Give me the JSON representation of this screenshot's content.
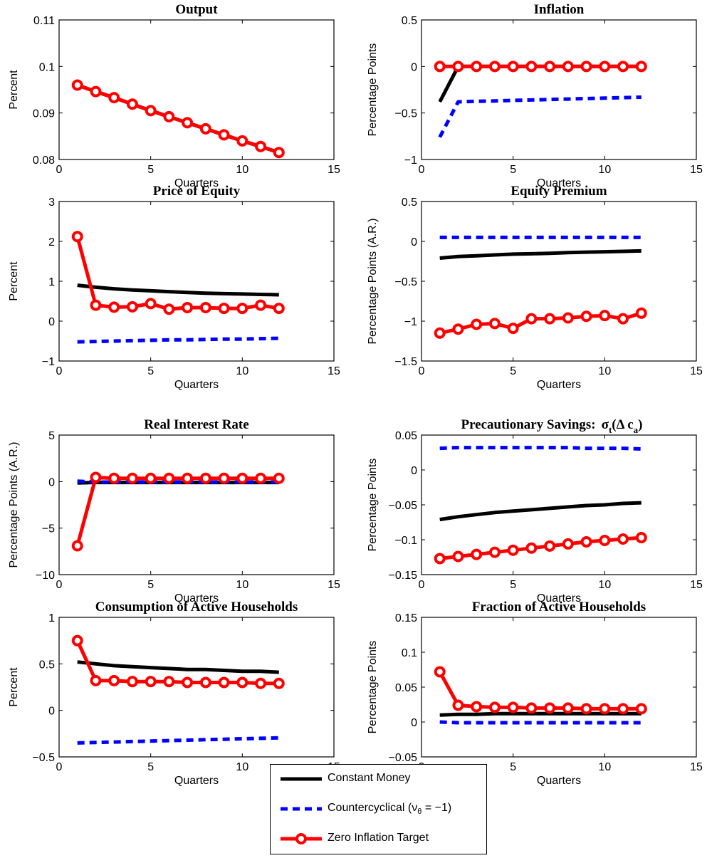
{
  "colors": {
    "constant": "#000000",
    "countercyclical": "#0000ff",
    "zero_inflation": "#ff0000"
  },
  "legend": {
    "constant": "Constant Money",
    "countercyclical_prefix": "Countercyclical (ν",
    "countercyclical_sub": "θ",
    "countercyclical_suffix": " = −1)",
    "zero_inflation": "Zero Inflation Target"
  },
  "chart_data": [
    {
      "type": "line",
      "title": "Output",
      "xlabel": "Quarters",
      "ylabel": "Percent",
      "xlim": [
        0,
        15
      ],
      "ylim": [
        0.08,
        0.11
      ],
      "xticks": [
        "0",
        "5",
        "10",
        "15"
      ],
      "yticks": [
        "0.08",
        "0.09",
        "0.1",
        "0.11"
      ],
      "x": [
        1,
        2,
        3,
        4,
        5,
        6,
        7,
        8,
        9,
        10,
        11,
        12
      ],
      "series": [
        {
          "name": "Constant Money",
          "values": [
            0.096,
            0.0946,
            0.0933,
            0.0919,
            0.0905,
            0.0892,
            0.0879,
            0.0866,
            0.0853,
            0.084,
            0.0828,
            0.0815
          ]
        },
        {
          "name": "Countercyclical (νθ = −1)",
          "values": [
            0.096,
            0.0946,
            0.0933,
            0.0919,
            0.0905,
            0.0892,
            0.0879,
            0.0866,
            0.0853,
            0.084,
            0.0828,
            0.0815
          ]
        },
        {
          "name": "Zero Inflation Target",
          "values": [
            0.096,
            0.0946,
            0.0933,
            0.0919,
            0.0905,
            0.0892,
            0.0879,
            0.0866,
            0.0853,
            0.084,
            0.0828,
            0.0815
          ]
        }
      ]
    },
    {
      "type": "line",
      "title": "Inflation",
      "xlabel": "Quarters",
      "ylabel": "Percentage Points",
      "xlim": [
        0,
        15
      ],
      "ylim": [
        -1,
        0.5
      ],
      "xticks": [
        "0",
        "5",
        "10",
        "15"
      ],
      "yticks": [
        "−1",
        "−0.5",
        "0",
        "0.5"
      ],
      "x": [
        1,
        2,
        3,
        4,
        5,
        6,
        7,
        8,
        9,
        10,
        11,
        12
      ],
      "series": [
        {
          "name": "Constant Money",
          "values": [
            -0.38,
            0,
            0,
            0,
            0,
            0,
            0,
            0,
            0,
            0,
            0,
            0
          ]
        },
        {
          "name": "Countercyclical (νθ = −1)",
          "values": [
            -0.76,
            -0.38,
            -0.375,
            -0.37,
            -0.365,
            -0.36,
            -0.355,
            -0.35,
            -0.345,
            -0.34,
            -0.335,
            -0.33
          ]
        },
        {
          "name": "Zero Inflation Target",
          "values": [
            0,
            0,
            0,
            0,
            0,
            0,
            0,
            0,
            0,
            0,
            0,
            0
          ]
        }
      ]
    },
    {
      "type": "line",
      "title": "Price of Equity",
      "xlabel": "Quarters",
      "ylabel": "Percent",
      "xlim": [
        0,
        15
      ],
      "ylim": [
        -1,
        3
      ],
      "xticks": [
        "0",
        "5",
        "10",
        "15"
      ],
      "yticks": [
        "−1",
        "0",
        "1",
        "2",
        "3"
      ],
      "x": [
        1,
        2,
        3,
        4,
        5,
        6,
        7,
        8,
        9,
        10,
        11,
        12
      ],
      "series": [
        {
          "name": "Constant Money",
          "values": [
            0.9,
            0.85,
            0.81,
            0.78,
            0.76,
            0.74,
            0.72,
            0.7,
            0.69,
            0.68,
            0.67,
            0.66
          ]
        },
        {
          "name": "Countercyclical (νθ = −1)",
          "values": [
            -0.52,
            -0.51,
            -0.5,
            -0.49,
            -0.48,
            -0.47,
            -0.47,
            -0.46,
            -0.45,
            -0.45,
            -0.44,
            -0.43
          ]
        },
        {
          "name": "Zero Inflation Target",
          "values": [
            2.12,
            0.4,
            0.35,
            0.36,
            0.44,
            0.3,
            0.34,
            0.34,
            0.32,
            0.32,
            0.4,
            0.32
          ]
        }
      ]
    },
    {
      "type": "line",
      "title": "Equity Premium",
      "xlabel": "Quarters",
      "ylabel": "Percentage Points (A.R.)",
      "xlim": [
        0,
        15
      ],
      "ylim": [
        -1.5,
        0.5
      ],
      "xticks": [
        "0",
        "5",
        "10",
        "15"
      ],
      "yticks": [
        "−1.5",
        "−1",
        "−0.5",
        "0",
        "0.5"
      ],
      "x": [
        1,
        2,
        3,
        4,
        5,
        6,
        7,
        8,
        9,
        10,
        11,
        12
      ],
      "series": [
        {
          "name": "Constant Money",
          "values": [
            -0.21,
            -0.19,
            -0.18,
            -0.17,
            -0.16,
            -0.155,
            -0.15,
            -0.14,
            -0.135,
            -0.13,
            -0.125,
            -0.12
          ]
        },
        {
          "name": "Countercyclical (νθ = −1)",
          "values": [
            0.05,
            0.05,
            0.05,
            0.05,
            0.05,
            0.05,
            0.05,
            0.05,
            0.05,
            0.05,
            0.05,
            0.05
          ]
        },
        {
          "name": "Zero Inflation Target",
          "values": [
            -1.15,
            -1.1,
            -1.04,
            -1.03,
            -1.09,
            -0.97,
            -0.97,
            -0.96,
            -0.94,
            -0.93,
            -0.97,
            -0.9
          ]
        }
      ]
    },
    {
      "type": "line",
      "title": "Real Interest Rate",
      "xlabel": "Quarters",
      "ylabel": "Percentage Points (A.R.)",
      "xlim": [
        0,
        15
      ],
      "ylim": [
        -10,
        5
      ],
      "xticks": [
        "0",
        "5",
        "10",
        "15"
      ],
      "yticks": [
        "−10",
        "−5",
        "0",
        "5"
      ],
      "x": [
        1,
        2,
        3,
        4,
        5,
        6,
        7,
        8,
        9,
        10,
        11,
        12
      ],
      "series": [
        {
          "name": "Constant Money",
          "values": [
            -0.15,
            -0.1,
            -0.1,
            -0.1,
            -0.1,
            -0.1,
            -0.1,
            -0.1,
            -0.1,
            -0.1,
            -0.1,
            -0.1
          ]
        },
        {
          "name": "Countercyclical (νθ = −1)",
          "values": [
            0.05,
            -0.05,
            -0.05,
            -0.05,
            -0.05,
            -0.05,
            -0.05,
            -0.05,
            -0.05,
            -0.05,
            -0.05,
            -0.05
          ]
        },
        {
          "name": "Zero Inflation Target",
          "values": [
            -6.9,
            0.45,
            0.35,
            0.35,
            0.35,
            0.35,
            0.35,
            0.35,
            0.35,
            0.35,
            0.35,
            0.35
          ]
        }
      ]
    },
    {
      "type": "line",
      "title": "Precautionary Savings:",
      "title_math": {
        "sigma": "σ",
        "sigma_sub": "t",
        "paren": "(Δ c",
        "c_sub": "a",
        "close": ")"
      },
      "xlabel": "Quarters",
      "ylabel": "Percentage Points",
      "xlim": [
        0,
        15
      ],
      "ylim": [
        -0.15,
        0.05
      ],
      "xticks": [
        "0",
        "5",
        "10",
        "15"
      ],
      "yticks": [
        "−0.15",
        "−0.1",
        "−0.05",
        "0",
        "0.05"
      ],
      "x": [
        1,
        2,
        3,
        4,
        5,
        6,
        7,
        8,
        9,
        10,
        11,
        12
      ],
      "series": [
        {
          "name": "Constant Money",
          "values": [
            -0.071,
            -0.067,
            -0.064,
            -0.061,
            -0.059,
            -0.057,
            -0.055,
            -0.053,
            -0.051,
            -0.05,
            -0.048,
            -0.047
          ]
        },
        {
          "name": "Countercyclical (νθ = −1)",
          "values": [
            0.031,
            0.032,
            0.032,
            0.032,
            0.032,
            0.032,
            0.032,
            0.032,
            0.031,
            0.031,
            0.031,
            0.03
          ]
        },
        {
          "name": "Zero Inflation Target",
          "values": [
            -0.127,
            -0.124,
            -0.121,
            -0.118,
            -0.115,
            -0.112,
            -0.109,
            -0.106,
            -0.103,
            -0.101,
            -0.099,
            -0.097
          ]
        }
      ]
    },
    {
      "type": "line",
      "title": "Consumption of Active Households",
      "xlabel": "Quarters",
      "ylabel": "Percent",
      "xlim": [
        0,
        15
      ],
      "ylim": [
        -0.5,
        1
      ],
      "xticks": [
        "0",
        "5",
        "10",
        "15"
      ],
      "yticks": [
        "−0.5",
        "0",
        "0.5",
        "1"
      ],
      "x": [
        1,
        2,
        3,
        4,
        5,
        6,
        7,
        8,
        9,
        10,
        11,
        12
      ],
      "series": [
        {
          "name": "Constant Money",
          "values": [
            0.52,
            0.5,
            0.48,
            0.47,
            0.46,
            0.45,
            0.44,
            0.44,
            0.43,
            0.42,
            0.42,
            0.41
          ]
        },
        {
          "name": "Countercyclical (νθ = −1)",
          "values": [
            -0.35,
            -0.345,
            -0.34,
            -0.335,
            -0.33,
            -0.325,
            -0.32,
            -0.315,
            -0.31,
            -0.305,
            -0.3,
            -0.295
          ]
        },
        {
          "name": "Zero Inflation Target",
          "values": [
            0.75,
            0.32,
            0.32,
            0.31,
            0.31,
            0.31,
            0.3,
            0.3,
            0.3,
            0.3,
            0.29,
            0.29
          ]
        }
      ]
    },
    {
      "type": "line",
      "title": "Fraction of Active Households",
      "xlabel": "Quarters",
      "ylabel": "Percentage Points",
      "xlim": [
        0,
        15
      ],
      "ylim": [
        -0.05,
        0.15
      ],
      "xticks": [
        "0",
        "5",
        "10",
        "15"
      ],
      "yticks": [
        "−0.05",
        "0",
        "0.05",
        "0.1",
        "0.15"
      ],
      "x": [
        1,
        2,
        3,
        4,
        5,
        6,
        7,
        8,
        9,
        10,
        11,
        12
      ],
      "series": [
        {
          "name": "Constant Money",
          "values": [
            0.01,
            0.011,
            0.011,
            0.012,
            0.012,
            0.012,
            0.012,
            0.012,
            0.012,
            0.012,
            0.012,
            0.012
          ]
        },
        {
          "name": "Countercyclical (νθ = −1)",
          "values": [
            0.0,
            -0.001,
            -0.001,
            -0.001,
            -0.001,
            -0.001,
            -0.001,
            -0.001,
            -0.001,
            -0.001,
            -0.001,
            -0.001
          ]
        },
        {
          "name": "Zero Inflation Target",
          "values": [
            0.072,
            0.024,
            0.022,
            0.021,
            0.021,
            0.02,
            0.02,
            0.02,
            0.019,
            0.019,
            0.019,
            0.019
          ]
        }
      ]
    }
  ]
}
